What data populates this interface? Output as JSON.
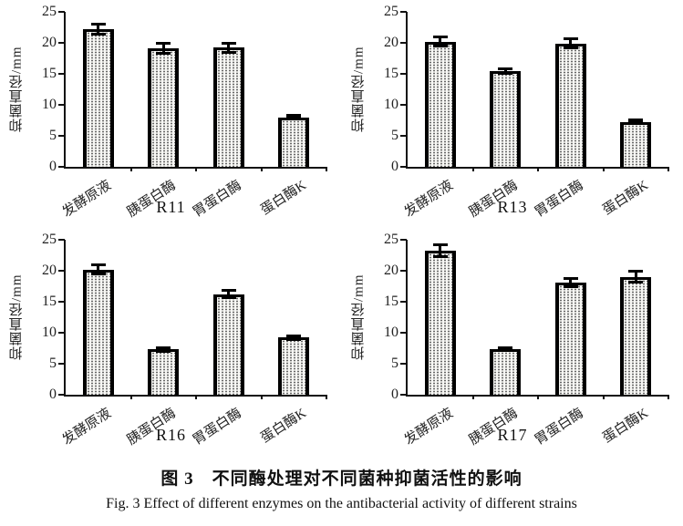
{
  "figure": {
    "caption_zh": "图 3　不同酶处理对不同菌种抑菌活性的影响",
    "caption_en": "Fig. 3   Effect of different enzymes on the antibacterial activity of different strains"
  },
  "style": {
    "axis_color": "#111111",
    "bar_fill": "#f7f7f4",
    "bar_dot_color": "#666666",
    "bar_border": "#000000",
    "text_color": "#1a1a1a",
    "bar_pattern": "stippled-dots"
  },
  "chart_data": [
    {
      "type": "bar",
      "title": "R11",
      "ylabel": "抑菌直径/mm",
      "xlabel": "",
      "ylim": [
        0,
        25
      ],
      "yticks": [
        0,
        5,
        10,
        15,
        20,
        25
      ],
      "grid": false,
      "legend": false,
      "categories": [
        "发酵原液",
        "胰蛋白酶",
        "胃蛋白酶",
        "蛋白酶K"
      ],
      "values": [
        22.2,
        19.1,
        19.2,
        8.0
      ],
      "errors": [
        1.0,
        1.0,
        1.0,
        0.4
      ]
    },
    {
      "type": "bar",
      "title": "R13",
      "ylabel": "抑菌直径/mm",
      "xlabel": "",
      "ylim": [
        0,
        25
      ],
      "yticks": [
        0,
        5,
        10,
        15,
        20,
        25
      ],
      "grid": false,
      "legend": false,
      "categories": [
        "发酵原液",
        "胰蛋白酶",
        "胃蛋白酶",
        "蛋白酶K"
      ],
      "values": [
        20.2,
        15.5,
        19.9,
        7.2
      ],
      "errors": [
        1.0,
        0.6,
        1.0,
        0.3
      ]
    },
    {
      "type": "bar",
      "title": "R16",
      "ylabel": "抑菌直径/mm",
      "xlabel": "",
      "ylim": [
        0,
        25
      ],
      "yticks": [
        0,
        5,
        10,
        15,
        20,
        25
      ],
      "grid": false,
      "legend": false,
      "categories": [
        "发酵原液",
        "胰蛋白酶",
        "胃蛋白酶",
        "蛋白酶K"
      ],
      "values": [
        20.2,
        7.3,
        16.2,
        9.2
      ],
      "errors": [
        1.0,
        0.5,
        0.8,
        0.5
      ]
    },
    {
      "type": "bar",
      "title": "R17",
      "ylabel": "抑菌直径/mm",
      "xlabel": "",
      "ylim": [
        0,
        25
      ],
      "yticks": [
        0,
        5,
        10,
        15,
        20,
        25
      ],
      "grid": false,
      "legend": false,
      "categories": [
        "发酵原液",
        "胰蛋白酶",
        "胃蛋白酶",
        "蛋白酶K"
      ],
      "values": [
        23.2,
        7.3,
        18.1,
        19.0
      ],
      "errors": [
        1.2,
        0.4,
        0.9,
        1.1
      ]
    }
  ]
}
